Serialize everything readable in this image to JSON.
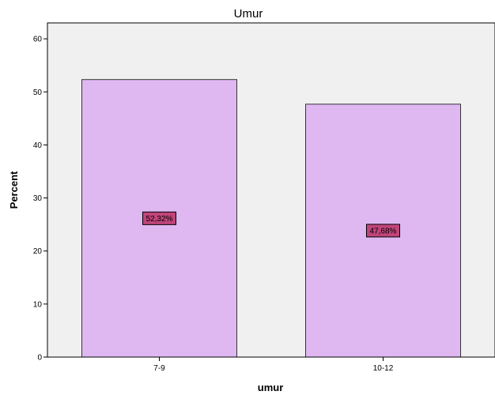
{
  "chart_data": {
    "type": "bar",
    "title": "Umur",
    "xlabel": "umur",
    "ylabel": "Percent",
    "categories": [
      "7-9",
      "10-12"
    ],
    "values": [
      52.32,
      47.68
    ],
    "data_labels": [
      "52,32%",
      "47,68%"
    ],
    "ylim": [
      0,
      63
    ],
    "yticks": [
      "0",
      "10",
      "20",
      "30",
      "40",
      "50",
      "60"
    ],
    "grid": false,
    "colors": {
      "plot_background": "#f0f0f0",
      "bar_fill": "#dfb8f2",
      "bar_stroke": "#333333",
      "label_box": "#c0457a"
    }
  }
}
